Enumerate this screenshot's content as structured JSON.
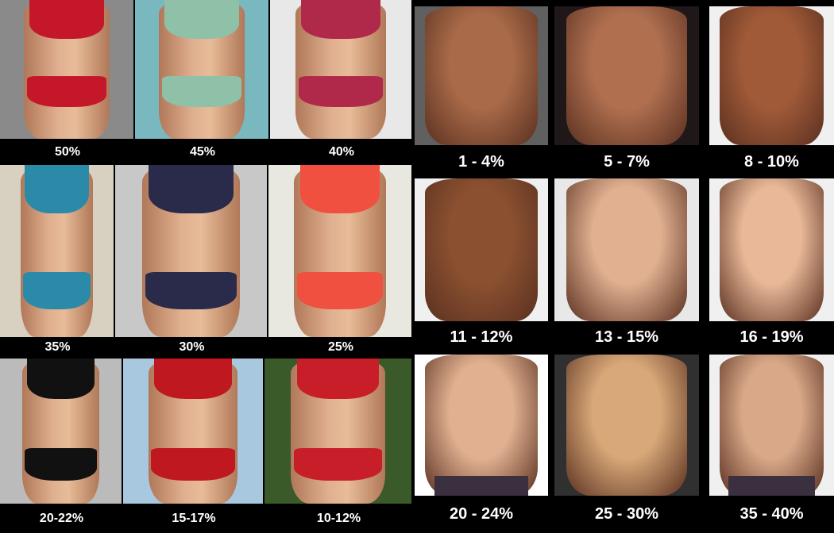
{
  "women": {
    "labels": [
      "50%",
      "45%",
      "40%",
      "35%",
      "30%",
      "25%",
      "20-22%",
      "15-17%",
      "10-12%"
    ],
    "suit_colors": [
      "#c4182a",
      "#8fc0a8",
      "#b0284a",
      "#2a8aa8",
      "#2a2a4a",
      "#f05040",
      "#111111",
      "#c01820",
      "#c81e2a"
    ],
    "background_colors": [
      "#8a8a8a",
      "#7ab8c0",
      "#e8e8e8",
      "#d8d0c0",
      "#c8c8c8",
      "#e8e8e0",
      "#bbbbbb",
      "#a8c8e0",
      "#3a5a2a"
    ]
  },
  "men": {
    "labels": [
      "1 - 4%",
      "5 - 7%",
      "8 - 10%",
      "11 - 12%",
      "13 - 15%",
      "16 - 19%",
      "20 - 24%",
      "25 - 30%",
      "35 - 40%"
    ],
    "skin_colors": [
      "#a86a48",
      "#b07050",
      "#a05a38",
      "#8a5030",
      "#e0b090",
      "#e8b898",
      "#e0b090",
      "#d8a878",
      "#d8a888"
    ],
    "background_colors": [
      "#606060",
      "#201818",
      "#f0f0f0",
      "#f0f0f0",
      "#e8e8e8",
      "#f0f0f0",
      "#ffffff",
      "#303030",
      "#f0f0f0"
    ]
  }
}
